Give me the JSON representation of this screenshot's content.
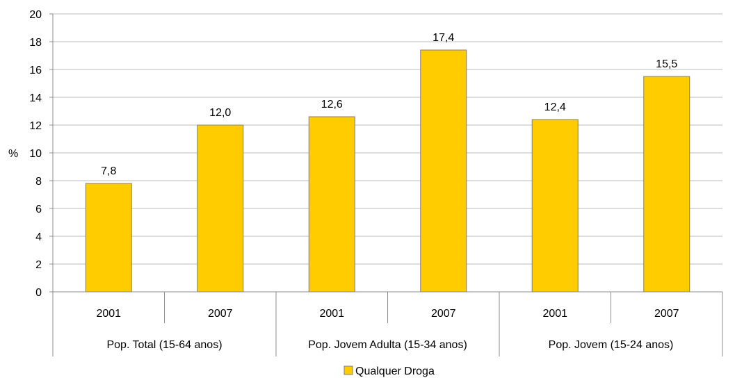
{
  "chart_data": {
    "type": "bar",
    "ylabel": "%",
    "ylim": [
      0,
      20
    ],
    "yticks": [
      0,
      2,
      4,
      6,
      8,
      10,
      12,
      14,
      16,
      18,
      20
    ],
    "grid": true,
    "legend_position": "bottom-center",
    "groups": [
      {
        "name": "Pop. Total (15-64 anos)",
        "categories": [
          "2001",
          "2007"
        ]
      },
      {
        "name": "Pop. Jovem Adulta (15-34 anos)",
        "categories": [
          "2001",
          "2007"
        ]
      },
      {
        "name": "Pop. Jovem (15-24 anos)",
        "categories": [
          "2001",
          "2007"
        ]
      }
    ],
    "categories": [
      "2001",
      "2007",
      "2001",
      "2007",
      "2001",
      "2007"
    ],
    "series": [
      {
        "name": "Qualquer Droga",
        "color": "#FFCC00",
        "values": [
          7.8,
          12.0,
          12.6,
          17.4,
          12.4,
          15.5
        ],
        "labels": [
          "7,8",
          "12,0",
          "12,6",
          "17,4",
          "12,4",
          "15,5"
        ]
      }
    ]
  }
}
